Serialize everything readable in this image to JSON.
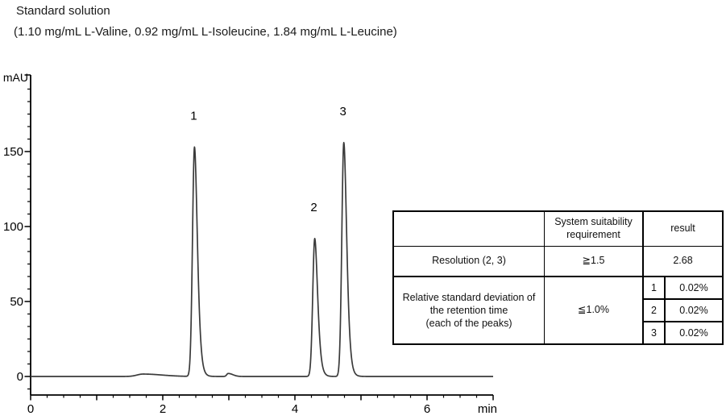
{
  "header": {
    "title": "Standard solution",
    "subtitle": "(1.10 mg/mL L-Valine, 0.92 mg/mL L-Isoleucine, 1.84 mg/mL L-Leucine)"
  },
  "chart_data": {
    "type": "line",
    "subtype": "chromatogram",
    "ylabel": "mAU",
    "xlabel": "min",
    "xlim": [
      0,
      7
    ],
    "ylim": [
      0,
      200
    ],
    "x_major_ticks": [
      0,
      2,
      4,
      6
    ],
    "x_minor_step_min": 0.25,
    "y_major_ticks": [
      0,
      50,
      100,
      150
    ],
    "y_minor_divisions": 6,
    "trace_color": "#3a3a3a",
    "axis_color": "#000000",
    "peaks": [
      {
        "label": "1",
        "retention_time_min": 2.48,
        "height_mAU": 153
      },
      {
        "label": "2",
        "retention_time_min": 4.3,
        "height_mAU": 92
      },
      {
        "label": "3",
        "retention_time_min": 4.74,
        "height_mAU": 156
      }
    ],
    "baseline_features": [
      {
        "t_min": 1.7,
        "height_mAU": 1.6,
        "width_min": 0.09
      },
      {
        "t_min": 2.99,
        "height_mAU": 2.0,
        "width_min": 0.022
      }
    ]
  },
  "table": {
    "header": {
      "criterion": "",
      "requirement": "System suitability requirement",
      "result": "result"
    },
    "rows": {
      "resolution": {
        "label": "Resolution (2, 3)",
        "requirement": "≧1.5",
        "result": "2.68"
      },
      "rsd": {
        "label_lines": [
          "Relative standard deviation of",
          "the retention time",
          "(each of the peaks)"
        ],
        "requirement": "≦1.0%",
        "results": [
          {
            "peak": "1",
            "value": "0.02%"
          },
          {
            "peak": "2",
            "value": "0.02%"
          },
          {
            "peak": "3",
            "value": "0.02%"
          }
        ]
      }
    }
  }
}
